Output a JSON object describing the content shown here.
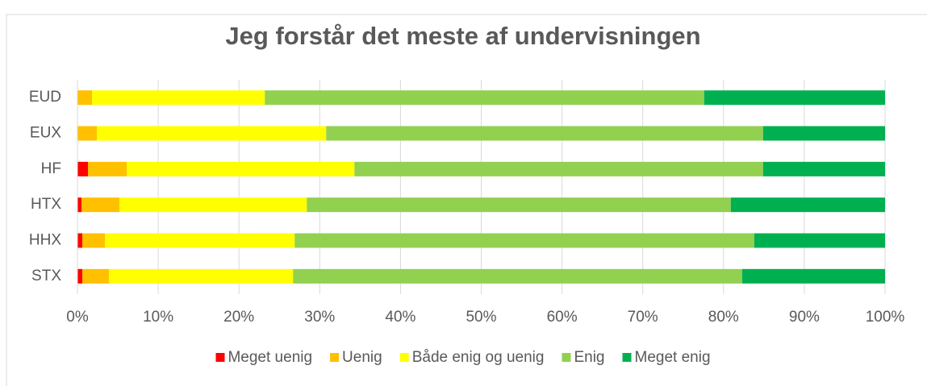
{
  "chart_data": {
    "type": "stacked_barh",
    "title": "Jeg forstår det meste af undervisningen",
    "categories": [
      "EUD",
      "EUX",
      "HF",
      "HTX",
      "HHX",
      "STX"
    ],
    "series": [
      {
        "name": "Meget uenig",
        "color": "#ff0000",
        "values": [
          0,
          0,
          1.3,
          0.5,
          0.6,
          0.6
        ]
      },
      {
        "name": "Uenig",
        "color": "#ffc000",
        "values": [
          1.8,
          2.4,
          4.8,
          4.7,
          2.8,
          3.3
        ]
      },
      {
        "name": "Både enig og uenig",
        "color": "#ffff00",
        "values": [
          21.4,
          28.4,
          28.2,
          23.2,
          23.5,
          22.8
        ]
      },
      {
        "name": "Enig",
        "color": "#92d050",
        "values": [
          54.4,
          54.1,
          50.6,
          52.5,
          56.9,
          55.6
        ]
      },
      {
        "name": "Meget enig",
        "color": "#00b050",
        "values": [
          22.4,
          15.1,
          15.1,
          19.1,
          16.2,
          17.7
        ]
      }
    ],
    "xlim": [
      0,
      100
    ],
    "xticks": [
      {
        "value": 0,
        "label": "0%"
      },
      {
        "value": 10,
        "label": "10%"
      },
      {
        "value": 20,
        "label": "20%"
      },
      {
        "value": 30,
        "label": "30%"
      },
      {
        "value": 40,
        "label": "40%"
      },
      {
        "value": 50,
        "label": "50%"
      },
      {
        "value": 60,
        "label": "60%"
      },
      {
        "value": 70,
        "label": "70%"
      },
      {
        "value": 80,
        "label": "80%"
      },
      {
        "value": 90,
        "label": "90%"
      },
      {
        "value": 100,
        "label": "100%"
      }
    ],
    "grid": true,
    "legend": "bottom"
  }
}
